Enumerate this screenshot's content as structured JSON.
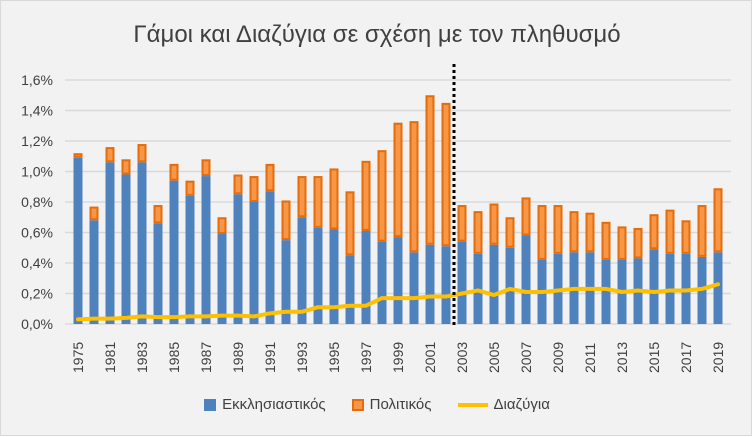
{
  "chart_data": {
    "type": "bar",
    "title": "Γάμοι και Διαζύγια σε σχέση με τον πληθυσμό",
    "xlabel": "",
    "ylabel": "",
    "ylim": [
      0,
      1.6
    ],
    "yticks": [
      "0,0%",
      "0,2%",
      "0,4%",
      "0,6%",
      "0,8%",
      "1,0%",
      "1,2%",
      "1,4%",
      "1,6%"
    ],
    "categories": [
      "1975",
      "1980",
      "1981",
      "1982",
      "1983",
      "1984",
      "1985",
      "1986",
      "1987",
      "1988",
      "1989",
      "1990",
      "1991",
      "1992",
      "1993",
      "1994",
      "1995",
      "1996",
      "1997",
      "1998",
      "1999",
      "2000",
      "2001",
      "2002",
      "2003",
      "2004",
      "2005",
      "2006",
      "2007",
      "2008",
      "2009",
      "2010",
      "2011",
      "2012",
      "2013",
      "2014",
      "2015",
      "2016",
      "2017",
      "2018",
      "2019"
    ],
    "xtick_labels": [
      "1975",
      "1981",
      "1983",
      "1985",
      "1987",
      "1989",
      "1991",
      "1993",
      "1995",
      "1997",
      "1999",
      "2001",
      "2003",
      "2005",
      "2007",
      "2009",
      "2011",
      "2013",
      "2015",
      "2017",
      "2019"
    ],
    "series": [
      {
        "name": "Εκκλησιαστικός",
        "type": "stacked-bar",
        "color": "#4f81bd",
        "values": [
          1.09,
          0.68,
          1.06,
          0.98,
          1.06,
          0.66,
          0.94,
          0.84,
          0.97,
          0.59,
          0.85,
          0.8,
          0.87,
          0.55,
          0.7,
          0.63,
          0.62,
          0.45,
          0.61,
          0.54,
          0.57,
          0.47,
          0.52,
          0.51,
          0.54,
          0.46,
          0.52,
          0.5,
          0.58,
          0.42,
          0.46,
          0.47,
          0.47,
          0.42,
          0.42,
          0.43,
          0.49,
          0.46,
          0.46,
          0.44,
          0.47
        ]
      },
      {
        "name": "Πολιτικός",
        "type": "stacked-bar",
        "color": "#f79646",
        "values": [
          0.03,
          0.09,
          0.1,
          0.1,
          0.12,
          0.12,
          0.11,
          0.1,
          0.11,
          0.11,
          0.13,
          0.17,
          0.18,
          0.26,
          0.27,
          0.34,
          0.4,
          0.42,
          0.46,
          0.6,
          0.75,
          0.86,
          0.98,
          0.94,
          0.24,
          0.28,
          0.27,
          0.2,
          0.25,
          0.36,
          0.32,
          0.27,
          0.26,
          0.25,
          0.22,
          0.2,
          0.23,
          0.29,
          0.22,
          0.34,
          0.42
        ]
      },
      {
        "name": "Διαζύγια",
        "type": "line",
        "color": "#ffc000",
        "values": [
          0.03,
          0.035,
          0.035,
          0.04,
          0.05,
          0.045,
          0.045,
          0.05,
          0.05,
          0.055,
          0.055,
          0.05,
          0.07,
          0.08,
          0.08,
          0.11,
          0.11,
          0.12,
          0.12,
          0.17,
          0.17,
          0.17,
          0.18,
          0.18,
          0.2,
          0.22,
          0.19,
          0.23,
          0.21,
          0.21,
          0.22,
          0.23,
          0.23,
          0.23,
          0.21,
          0.22,
          0.21,
          0.22,
          0.22,
          0.23,
          0.26
        ]
      }
    ],
    "grid": true,
    "legend": "bottom"
  }
}
